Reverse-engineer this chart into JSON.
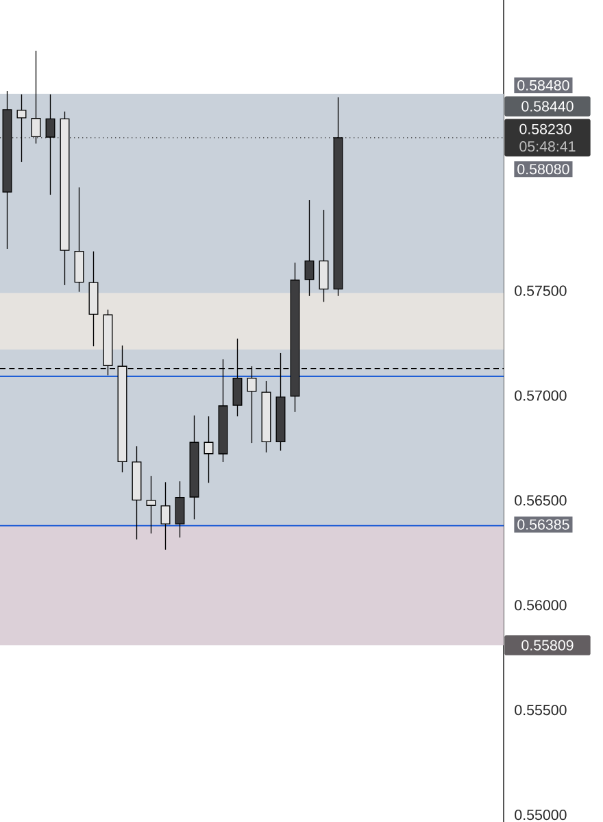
{
  "chart_data": {
    "type": "candlestick",
    "categories": [
      null,
      null,
      null,
      null,
      null,
      null,
      null,
      null,
      null,
      null,
      null,
      null,
      null,
      null,
      null,
      null,
      null,
      null,
      null,
      null,
      null,
      null,
      null,
      null,
      null,
      null,
      null,
      null,
      null,
      null,
      null,
      null,
      null,
      null,
      null
    ],
    "ohlc": [
      [
        0.57971,
        0.58452,
        0.577,
        0.58364
      ],
      [
        0.58361,
        0.58437,
        0.58115,
        0.58325
      ],
      [
        0.58322,
        0.58645,
        0.58202,
        0.58235
      ],
      [
        0.58233,
        0.58437,
        0.57958,
        0.5832
      ],
      [
        0.5832,
        0.58355,
        0.57527,
        0.57693
      ],
      [
        0.57688,
        0.57993,
        0.57495,
        0.57541
      ],
      [
        0.57539,
        0.57688,
        0.57235,
        0.57388
      ],
      [
        0.57385,
        0.5741,
        0.57097,
        0.57143
      ],
      [
        0.5714,
        0.57239,
        0.56634,
        0.56685
      ],
      [
        0.56683,
        0.56758,
        0.56314,
        0.56502
      ],
      [
        0.565,
        0.56617,
        0.56342,
        0.56476
      ],
      [
        0.56474,
        0.56587,
        0.56265,
        0.56388
      ],
      [
        0.56388,
        0.56591,
        0.56323,
        0.56514
      ],
      [
        0.56516,
        0.56905,
        0.5641,
        0.56777
      ],
      [
        0.56777,
        0.56901,
        0.56584,
        0.56723
      ],
      [
        0.56722,
        0.57173,
        0.56683,
        0.56951
      ],
      [
        0.56954,
        0.57272,
        0.56901,
        0.57083
      ],
      [
        0.57083,
        0.5714,
        0.56774,
        0.5702
      ],
      [
        0.57016,
        0.57069,
        0.56729,
        0.5678
      ],
      [
        0.5678,
        0.57203,
        0.56737,
        0.56993
      ],
      [
        0.56997,
        0.57634,
        0.56922,
        0.57551
      ],
      [
        0.57554,
        0.57932,
        0.57475,
        0.57642
      ],
      [
        0.57642,
        0.57886,
        0.57447,
        0.57508
      ],
      [
        0.57508,
        0.58423,
        0.57475,
        0.5823
      ],
      null,
      null,
      null,
      null,
      null,
      null,
      null,
      null,
      null,
      null,
      null
    ],
    "ylim": [
      0.54966,
      0.58887
    ],
    "yticks": [
      {
        "value": 0.55,
        "label": "0.55000"
      },
      {
        "value": 0.555,
        "label": "0.55500"
      },
      {
        "value": 0.56,
        "label": "0.56000"
      },
      {
        "value": 0.56385,
        "label": "0.56385"
      },
      {
        "value": 0.565,
        "label": "0.56500"
      },
      {
        "value": 0.57,
        "label": "0.57000"
      },
      {
        "value": 0.575,
        "label": "0.57500"
      },
      {
        "value": 0.5808,
        "label": "0.58080"
      },
      {
        "value": 0.5848,
        "label": "0.58480"
      }
    ],
    "tick_labels": "y",
    "ref_lines": [
      {
        "axis": "y",
        "value": 0.5823,
        "label": "0.58230",
        "line_style": "dotted",
        "color": "#333333"
      },
      {
        "axis": "y",
        "value": 0.57129,
        "line_style": "dashed",
        "color": "#000000"
      },
      {
        "axis": "y",
        "value": 0.5638,
        "color": "#1f5fd6"
      },
      {
        "axis": "y",
        "value": 0.57092,
        "color": "#1f5fd6"
      }
    ],
    "bands": [
      {
        "axis": "y",
        "from": 0.56385,
        "to": 0.5844,
        "label": "0.58440",
        "color": "#c9d1da"
      },
      {
        "axis": "y",
        "from": 0.56385,
        "to": 0.55809,
        "label": "0.55809",
        "color": "#dcd0d8"
      },
      {
        "axis": "y",
        "from": 0.5722,
        "to": 0.5749,
        "color": "#e6e3df"
      }
    ],
    "annotations": [
      "05:48:41"
    ]
  }
}
